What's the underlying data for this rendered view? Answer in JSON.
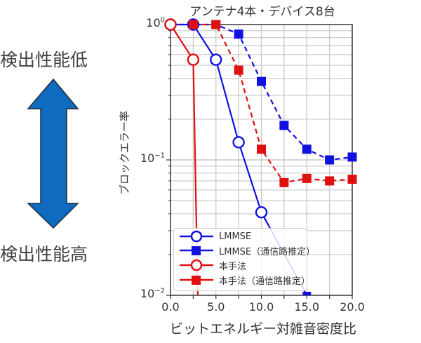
{
  "left_panel": {
    "top_label": "検出性能低",
    "bottom_label": "検出性能高",
    "arrow_color": "#0f6bbf",
    "arrow_outline": "#1a2a3a"
  },
  "chart_data": {
    "type": "line",
    "title": "アンテナ4本・デバイス8台",
    "xlabel": "ビットエネルギー対雑音密度比",
    "ylabel": "ブロックエラー率",
    "xlim": [
      0.0,
      20.0
    ],
    "ylim": [
      0.01,
      1.0
    ],
    "yscale": "log",
    "grid": true,
    "x_ticks": [
      "0.0",
      "5.0",
      "10.0",
      "15.0",
      "20.0"
    ],
    "y_ticks": [
      {
        "base": "10",
        "exp": "0"
      },
      {
        "base": "10",
        "exp": "−1"
      },
      {
        "base": "10",
        "exp": "−2"
      }
    ],
    "legend_position": "lower left",
    "series": [
      {
        "name": "LMMSE",
        "color": "#1010e0",
        "line": "solid",
        "marker": "open-circle",
        "x": [
          0.0,
          2.5,
          5.0,
          7.5,
          10.0,
          15.0
        ],
        "y": [
          1.0,
          1.0,
          0.55,
          0.135,
          0.041,
          0.01
        ]
      },
      {
        "name": "LMMSE（通信路推定）",
        "color": "#1010e0",
        "line": "dashed",
        "marker": "filled-square",
        "x": [
          0.0,
          2.5,
          5.0,
          7.5,
          10.0,
          12.5,
          15.0,
          17.5,
          20.0
        ],
        "y": [
          1.0,
          1.0,
          1.0,
          0.85,
          0.38,
          0.18,
          0.12,
          0.1,
          0.105
        ]
      },
      {
        "name": "本手法",
        "color": "#e01010",
        "line": "solid",
        "marker": "open-circle",
        "x": [
          0.0,
          2.5,
          3.0
        ],
        "y": [
          1.0,
          0.55,
          0.01
        ]
      },
      {
        "name": "本手法（通信路推定）",
        "color": "#e01010",
        "line": "dashed",
        "marker": "filled-square",
        "x": [
          2.5,
          5.0,
          7.5,
          10.0,
          12.5,
          15.0,
          17.5,
          20.0
        ],
        "y": [
          1.0,
          1.0,
          0.46,
          0.12,
          0.068,
          0.073,
          0.07,
          0.072
        ]
      }
    ]
  }
}
